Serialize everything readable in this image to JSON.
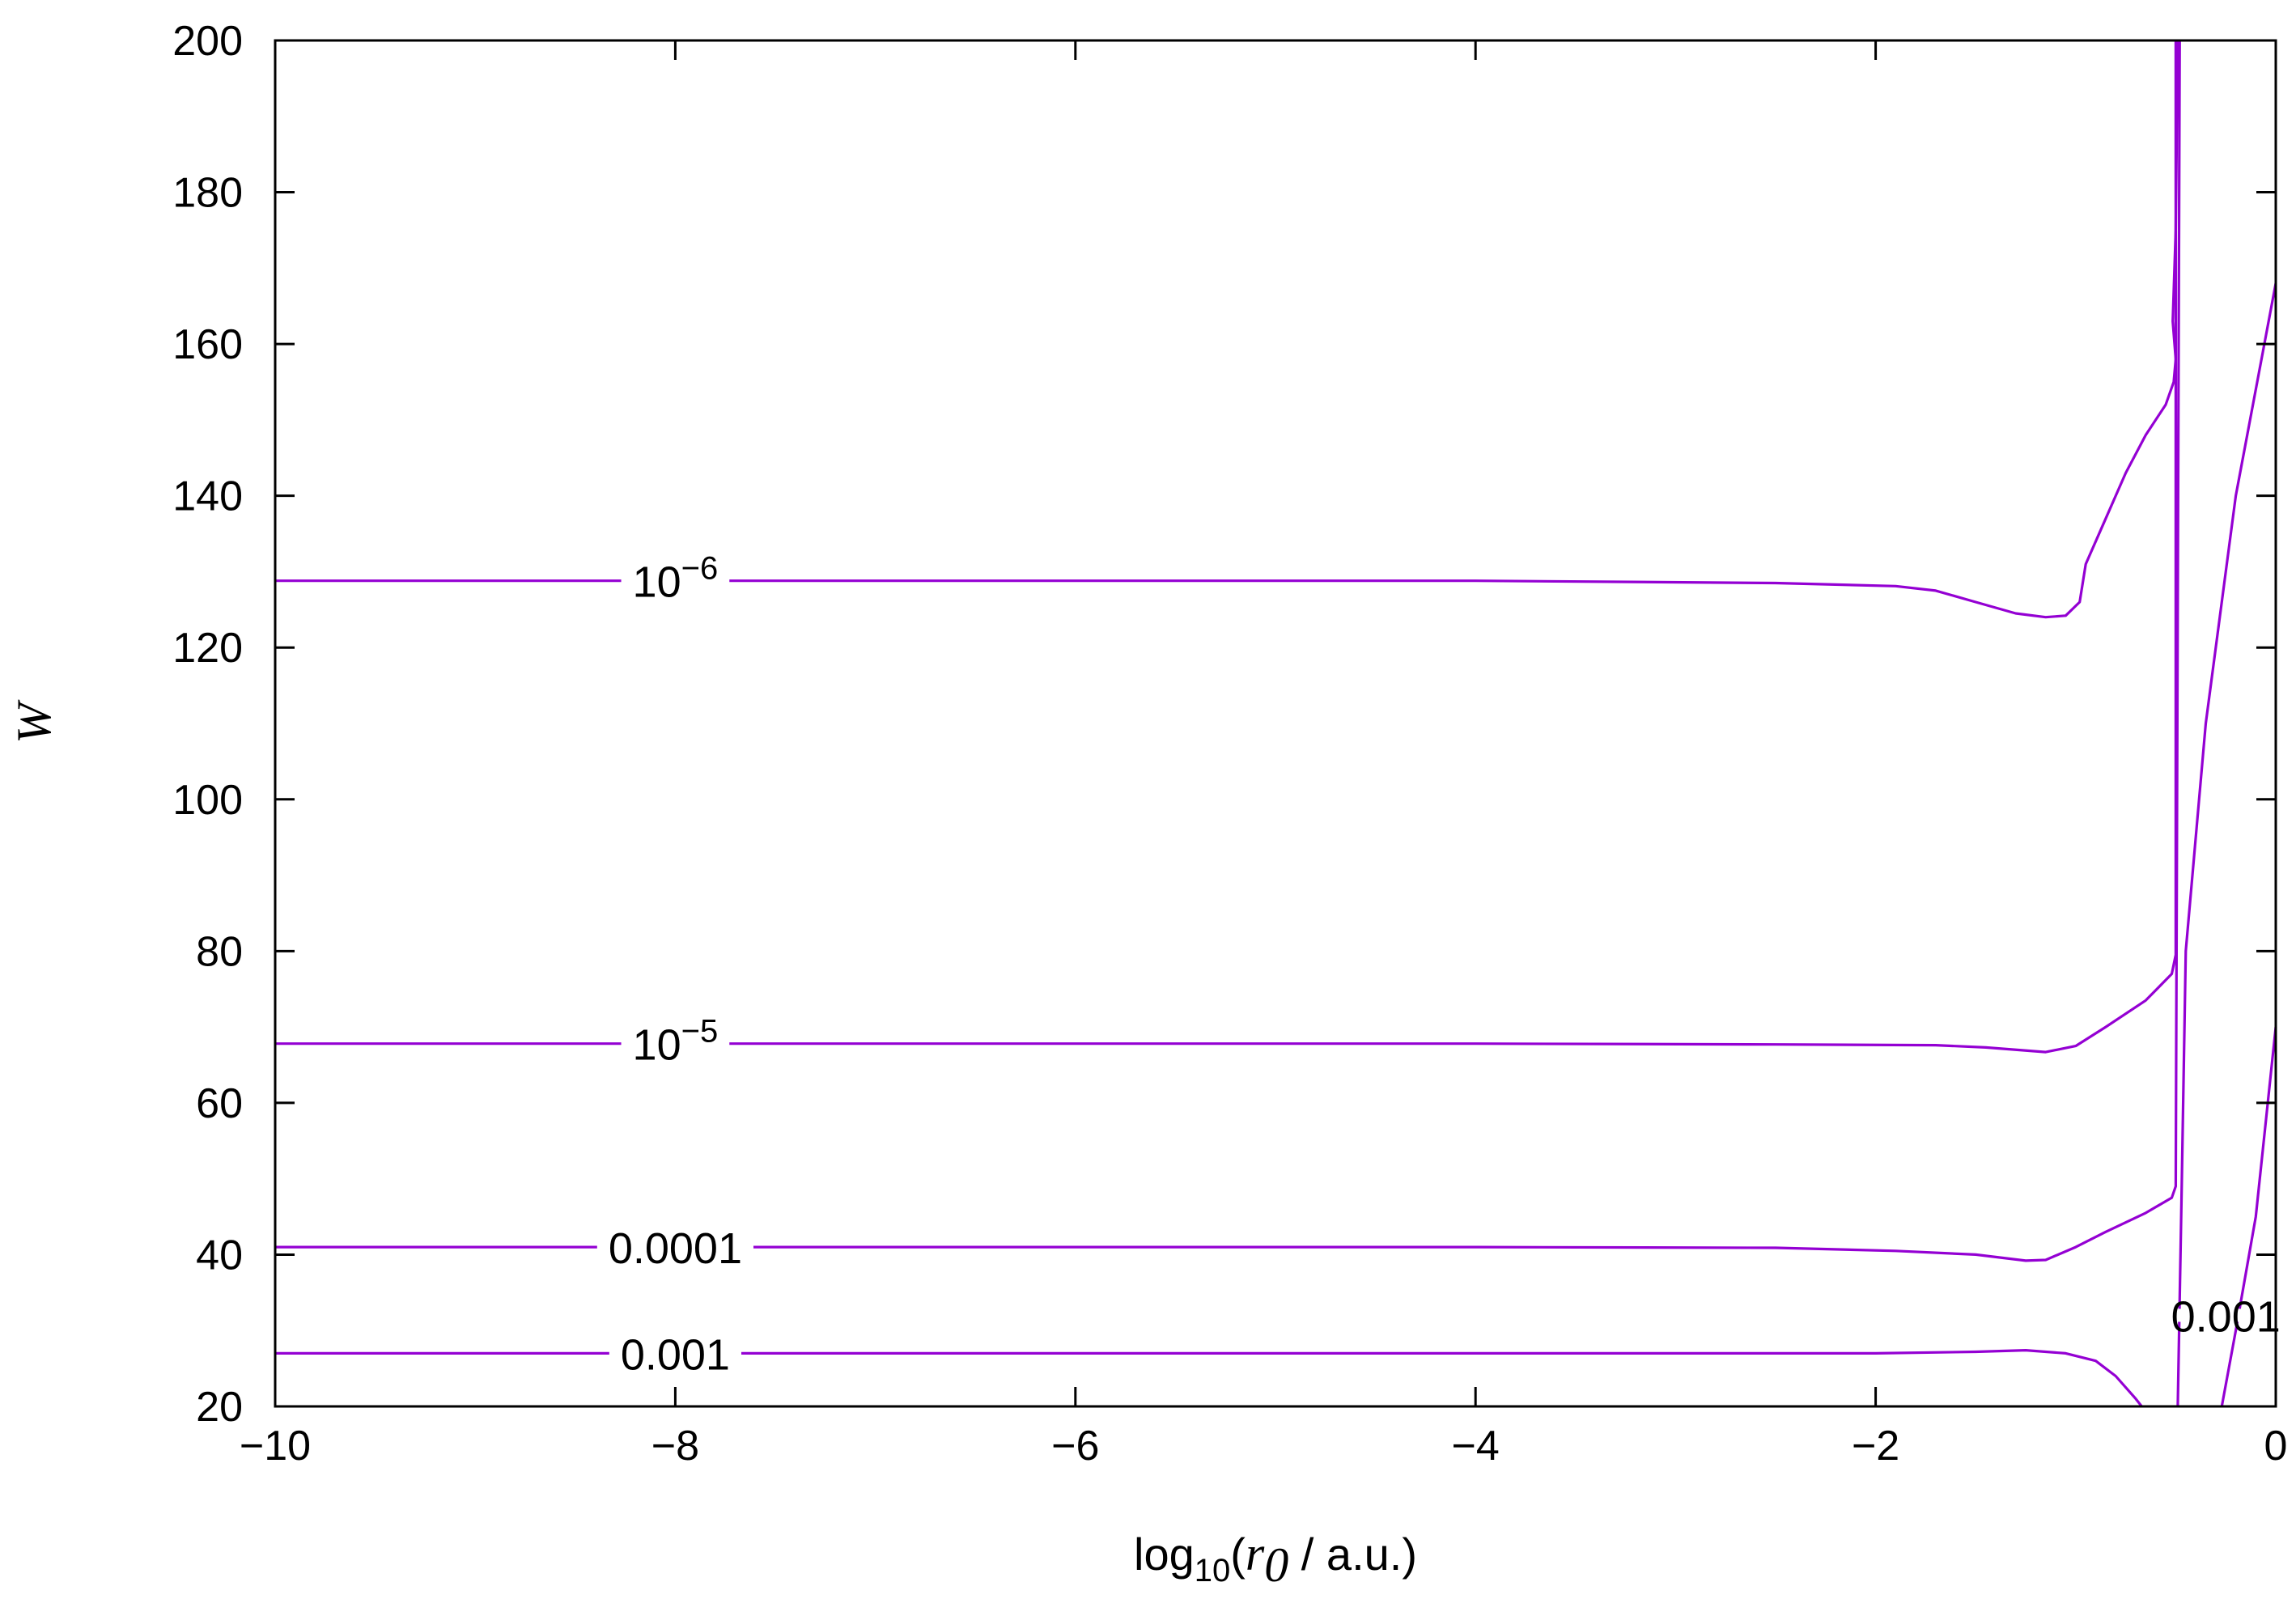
{
  "chart_data": {
    "type": "line",
    "subtype": "contour",
    "xlabel": {
      "prefix": "log",
      "sub": "10",
      "open": "(",
      "var": "r",
      "var_sub": "0",
      "suffix": " / a.u.)"
    },
    "ylabel": "W",
    "xlim": [
      -10,
      0
    ],
    "ylim": [
      20,
      200
    ],
    "xticks": [
      -10,
      -8,
      -6,
      -4,
      -2,
      0
    ],
    "xtick_labels": [
      "−10",
      "−8",
      "−6",
      "−4",
      "−2",
      "0"
    ],
    "yticks": [
      20,
      40,
      60,
      80,
      100,
      120,
      140,
      160,
      180,
      200
    ],
    "ytick_labels": [
      "20",
      "40",
      "60",
      "80",
      "100",
      "120",
      "140",
      "160",
      "180",
      "200"
    ],
    "grid": false,
    "line_color": "#9400d3",
    "series": [
      {
        "label_base": "10",
        "label_exp": "−6",
        "points": [
          [
            -10,
            128.8
          ],
          [
            -4,
            128.8
          ],
          [
            -2.5,
            128.5
          ],
          [
            -1.9,
            128.1
          ],
          [
            -1.7,
            127.5
          ],
          [
            -1.5,
            126.0
          ],
          [
            -1.3,
            124.5
          ],
          [
            -1.15,
            124.0
          ],
          [
            -1.05,
            124.2
          ],
          [
            -0.98,
            126.0
          ],
          [
            -0.95,
            131.0
          ],
          [
            -0.85,
            137.0
          ],
          [
            -0.75,
            143.0
          ],
          [
            -0.65,
            148.0
          ],
          [
            -0.55,
            152.0
          ],
          [
            -0.51,
            155.0
          ],
          [
            -0.5,
            158.0
          ],
          [
            -0.515,
            163.0
          ],
          [
            -0.5,
            175.0
          ],
          [
            -0.49,
            200.0
          ]
        ]
      },
      {
        "label_base": "10",
        "label_exp": "−5",
        "points": [
          [
            -10,
            67.8
          ],
          [
            -4,
            67.8
          ],
          [
            -2.5,
            67.7
          ],
          [
            -1.7,
            67.6
          ],
          [
            -1.45,
            67.3
          ],
          [
            -1.15,
            66.7
          ],
          [
            -1.0,
            67.5
          ],
          [
            -0.85,
            70.0
          ],
          [
            -0.65,
            73.5
          ],
          [
            -0.52,
            77.0
          ],
          [
            -0.5,
            79.5
          ],
          [
            -0.5,
            200.0
          ]
        ]
      },
      {
        "label_base": "",
        "label_exp": "",
        "label": "0.0001",
        "points": [
          [
            -10,
            41.0
          ],
          [
            -4,
            41.0
          ],
          [
            -2.5,
            40.9
          ],
          [
            -1.9,
            40.5
          ],
          [
            -1.5,
            40.0
          ],
          [
            -1.25,
            39.2
          ],
          [
            -1.15,
            39.3
          ],
          [
            -1.0,
            41.0
          ],
          [
            -0.85,
            43.0
          ],
          [
            -0.65,
            45.5
          ],
          [
            -0.52,
            47.5
          ],
          [
            -0.5,
            49.0
          ],
          [
            -0.48,
            200.0
          ]
        ]
      },
      {
        "label_base": "",
        "label_exp": "",
        "label": "0.001",
        "points": [
          [
            -10,
            27.0
          ],
          [
            -4,
            27.0
          ],
          [
            -2.0,
            27.0
          ],
          [
            -1.5,
            27.2
          ],
          [
            -1.25,
            27.4
          ],
          [
            -1.05,
            27.0
          ],
          [
            -0.9,
            26.0
          ],
          [
            -0.8,
            24.0
          ],
          [
            -0.7,
            21.0
          ],
          [
            -0.67,
            20.0
          ]
        ]
      },
      {
        "label_base": "",
        "label_exp": "",
        "label": "",
        "points": [
          [
            -0.49,
            20.0
          ],
          [
            -0.47,
            49.0
          ],
          [
            -0.45,
            80.0
          ],
          [
            -0.35,
            110.0
          ],
          [
            -0.2,
            140.0
          ],
          [
            0,
            168.0
          ]
        ]
      },
      {
        "label_base": "",
        "label_exp": "",
        "label": "0.001",
        "points": [
          [
            -0.27,
            20.0
          ],
          [
            -0.2,
            30.0
          ],
          [
            -0.1,
            45.0
          ],
          [
            0,
            70.0
          ]
        ]
      }
    ]
  },
  "contour_labels": [
    {
      "x": -8.0,
      "y": 128.8,
      "base": "10",
      "exp": "−6",
      "text": ""
    },
    {
      "x": -8.0,
      "y": 67.8,
      "base": "10",
      "exp": "−5",
      "text": ""
    },
    {
      "x": -8.0,
      "y": 41.0,
      "base": "",
      "exp": "",
      "text": "0.0001"
    },
    {
      "x": -8.0,
      "y": 27.0,
      "base": "",
      "exp": "",
      "text": "0.001"
    },
    {
      "x": -0.25,
      "y": 32.0,
      "base": "",
      "exp": "",
      "text": "0.001"
    }
  ]
}
